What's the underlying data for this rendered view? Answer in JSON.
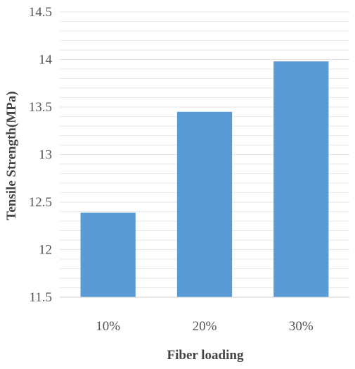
{
  "chart_data": {
    "type": "bar",
    "title": "",
    "xlabel": "Fiber loading",
    "ylabel": "Tensile Strength(MPa)",
    "categories": [
      "10%",
      "20%",
      "30%"
    ],
    "values": [
      12.39,
      13.45,
      13.98
    ],
    "ylim": [
      11.5,
      14.5
    ],
    "yticks": [
      "11.5",
      "12",
      "12.5",
      "13",
      "13.5",
      "14",
      "14.5"
    ],
    "ytick_values": [
      11.5,
      12,
      12.5,
      13,
      13.5,
      14,
      14.5
    ],
    "grid": true,
    "legend": "none",
    "bar_color": "#5b9bd5",
    "grid_color": "#e3e3e3"
  }
}
